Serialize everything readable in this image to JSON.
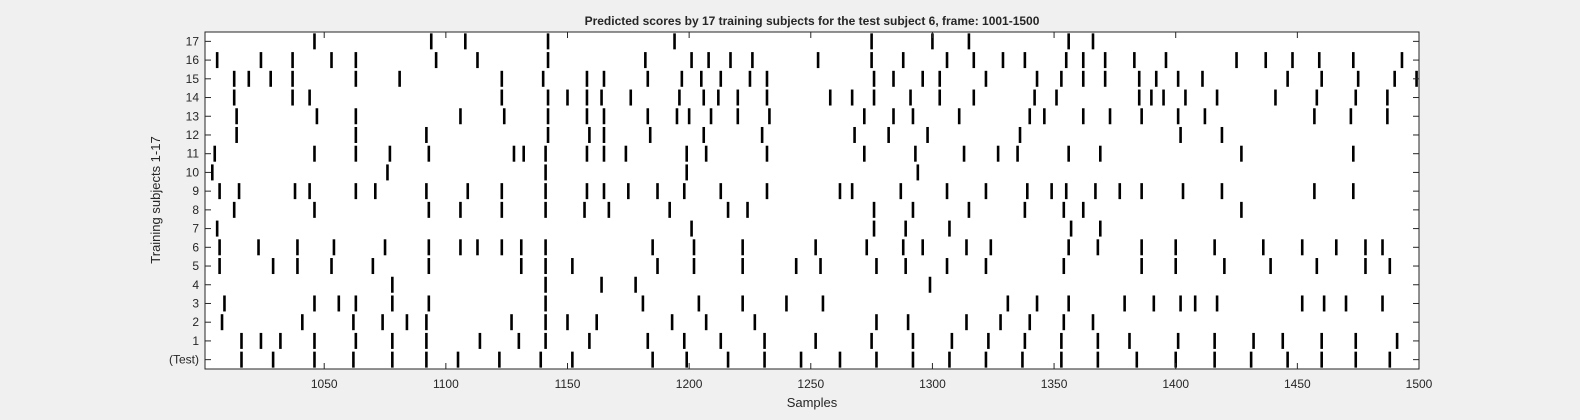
{
  "chart_data": {
    "type": "raster",
    "title": "Predicted scores by 17 training subjects for the test subject 6, frame: 1001-1500",
    "xlabel": "Samples",
    "ylabel": "Training subjects 1-17",
    "xlim": [
      1001,
      1500
    ],
    "ylim": [
      -0.5,
      17.5
    ],
    "x_ticks": [
      1050,
      1100,
      1150,
      1200,
      1250,
      1300,
      1350,
      1400,
      1450,
      1500
    ],
    "y_tick_labels": [
      "(Test)",
      "1",
      "2",
      "3",
      "4",
      "5",
      "6",
      "7",
      "8",
      "9",
      "10",
      "11",
      "12",
      "13",
      "14",
      "15",
      "16",
      "17"
    ],
    "grid": false,
    "rows": [
      {
        "label": "(Test)",
        "events": [
          1016,
          1029,
          1046,
          1062,
          1078,
          1092,
          1105,
          1122,
          1139,
          1152,
          1185,
          1199,
          1216,
          1231,
          1246,
          1262,
          1277,
          1292,
          1307,
          1322,
          1337,
          1353,
          1368,
          1384,
          1400,
          1416,
          1431,
          1446,
          1460,
          1474,
          1488
        ]
      },
      {
        "label": "1",
        "events": [
          1016,
          1024,
          1032,
          1046,
          1063,
          1078,
          1092,
          1114,
          1130,
          1141,
          1159,
          1183,
          1198,
          1213,
          1231,
          1252,
          1275,
          1292,
          1308,
          1323,
          1338,
          1353,
          1368,
          1381,
          1401,
          1416,
          1432,
          1444,
          1460,
          1474,
          1491
        ]
      },
      {
        "label": "2",
        "events": [
          1008,
          1041,
          1062,
          1074,
          1084,
          1092,
          1127,
          1141,
          1150,
          1162,
          1193,
          1207,
          1227,
          1277,
          1290,
          1314,
          1328,
          1340,
          1354,
          1366
        ]
      },
      {
        "label": "3",
        "events": [
          1009,
          1046,
          1056,
          1063,
          1078,
          1093,
          1141,
          1181,
          1204,
          1222,
          1240,
          1255,
          1331,
          1343,
          1356,
          1379,
          1391,
          1402,
          1408,
          1417,
          1452,
          1461,
          1470,
          1485
        ]
      },
      {
        "label": "4",
        "events": [
          1078,
          1141,
          1164,
          1178,
          1299
        ]
      },
      {
        "label": "5",
        "events": [
          1007,
          1029,
          1039,
          1053,
          1070,
          1093,
          1131,
          1141,
          1152,
          1187,
          1202,
          1222,
          1244,
          1254,
          1277,
          1289,
          1306,
          1322,
          1354,
          1386,
          1400,
          1420,
          1439,
          1458,
          1478,
          1488
        ]
      },
      {
        "label": "6",
        "events": [
          1007,
          1023,
          1039,
          1054,
          1075,
          1093,
          1106,
          1113,
          1123,
          1131,
          1141,
          1185,
          1202,
          1222,
          1252,
          1273,
          1288,
          1296,
          1314,
          1324,
          1356,
          1368,
          1386,
          1400,
          1416,
          1436,
          1452,
          1466,
          1478,
          1485
        ]
      },
      {
        "label": "7",
        "events": [
          1006,
          1201,
          1276,
          1289,
          1307,
          1357,
          1369
        ]
      },
      {
        "label": "8",
        "events": [
          1013,
          1046,
          1093,
          1106,
          1123,
          1141,
          1157,
          1167,
          1192,
          1216,
          1224,
          1276,
          1292,
          1315,
          1338,
          1354,
          1362,
          1427
        ]
      },
      {
        "label": "9",
        "events": [
          1007,
          1015,
          1038,
          1044,
          1063,
          1071,
          1092,
          1109,
          1123,
          1141,
          1158,
          1165,
          1175,
          1187,
          1198,
          1213,
          1232,
          1262,
          1267,
          1287,
          1306,
          1322,
          1339,
          1349,
          1355,
          1367,
          1377,
          1386,
          1403,
          1419,
          1457,
          1473
        ]
      },
      {
        "label": "10",
        "events": [
          1004,
          1076,
          1141,
          1199,
          1294
        ]
      },
      {
        "label": "11",
        "events": [
          1005,
          1046,
          1063,
          1077,
          1093,
          1128,
          1132,
          1141,
          1158,
          1165,
          1174,
          1199,
          1207,
          1232,
          1272,
          1293,
          1313,
          1327,
          1335,
          1356,
          1369,
          1427,
          1473
        ]
      },
      {
        "label": "12",
        "events": [
          1014,
          1063,
          1092,
          1142,
          1159,
          1165,
          1184,
          1206,
          1230,
          1268,
          1282,
          1298,
          1336,
          1402,
          1419
        ]
      },
      {
        "label": "13",
        "events": [
          1014,
          1047,
          1063,
          1106,
          1124,
          1142,
          1158,
          1165,
          1183,
          1195,
          1200,
          1209,
          1220,
          1233,
          1272,
          1284,
          1292,
          1311,
          1340,
          1346,
          1362,
          1373,
          1386,
          1401,
          1412,
          1457,
          1472,
          1487
        ]
      },
      {
        "label": "14",
        "events": [
          1013,
          1037,
          1044,
          1123,
          1142,
          1150,
          1158,
          1164,
          1176,
          1196,
          1206,
          1212,
          1220,
          1232,
          1258,
          1267,
          1276,
          1291,
          1303,
          1317,
          1342,
          1351,
          1385,
          1390,
          1395,
          1404,
          1417,
          1441,
          1458,
          1474,
          1487
        ]
      },
      {
        "label": "15",
        "events": [
          1013,
          1019,
          1028,
          1037,
          1063,
          1081,
          1123,
          1140,
          1158,
          1165,
          1183,
          1197,
          1205,
          1213,
          1225,
          1232,
          1276,
          1284,
          1296,
          1303,
          1322,
          1343,
          1353,
          1362,
          1371,
          1385,
          1392,
          1401,
          1411,
          1446,
          1460,
          1475,
          1490,
          1499
        ]
      },
      {
        "label": "16",
        "events": [
          1006,
          1024,
          1037,
          1053,
          1063,
          1096,
          1113,
          1142,
          1182,
          1201,
          1208,
          1217,
          1226,
          1253,
          1275,
          1288,
          1306,
          1317,
          1329,
          1338,
          1355,
          1362,
          1371,
          1383,
          1396,
          1425,
          1437,
          1448,
          1459,
          1473,
          1493
        ]
      },
      {
        "label": "17",
        "events": [
          1046,
          1094,
          1108,
          1142,
          1194,
          1275,
          1300,
          1315,
          1356,
          1366
        ]
      }
    ]
  }
}
